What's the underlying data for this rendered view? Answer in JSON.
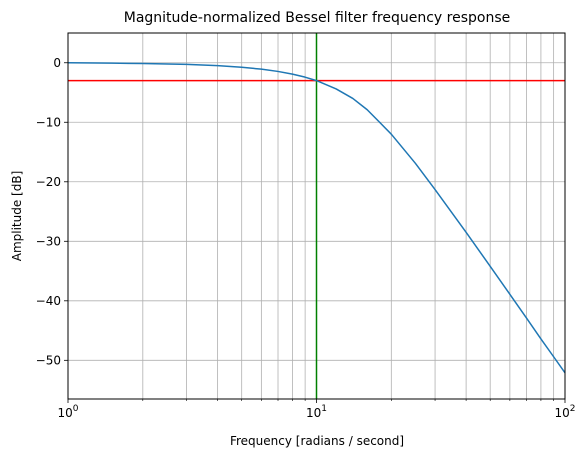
{
  "chart_data": {
    "type": "line",
    "title": "Magnitude-normalized Bessel filter frequency response",
    "xlabel": "Frequency [radians / second]",
    "ylabel": "Amplitude [dB]",
    "xscale": "log",
    "xlim": [
      1,
      100
    ],
    "ylim": [
      -56.5,
      5
    ],
    "grid": true,
    "x_ticks": [
      {
        "value": 1,
        "base": "10",
        "exp": "0"
      },
      {
        "value": 10,
        "base": "10",
        "exp": "1"
      },
      {
        "value": 100,
        "base": "10",
        "exp": "2"
      }
    ],
    "y_ticks": [
      0,
      -10,
      -20,
      -30,
      -40,
      -50
    ],
    "y_tick_labels": [
      "0",
      "−10",
      "−20",
      "−30",
      "−40",
      "−50"
    ],
    "series": [
      {
        "color": "#1f77b4",
        "x": [
          1,
          1.5,
          2,
          3,
          4,
          5,
          6,
          7,
          8,
          9,
          10,
          12,
          14,
          16,
          20,
          25,
          30,
          40,
          50,
          60,
          70,
          80,
          90,
          100
        ],
        "y": [
          0,
          -0.07,
          -0.12,
          -0.27,
          -0.48,
          -0.75,
          -1.08,
          -1.46,
          -1.91,
          -2.42,
          -3.0,
          -4.4,
          -6.0,
          -7.9,
          -12.0,
          -16.9,
          -21.3,
          -28.5,
          -34.2,
          -38.9,
          -42.9,
          -46.4,
          -49.4,
          -52.1
        ]
      }
    ],
    "reference_lines": [
      {
        "orientation": "horizontal",
        "value": -3,
        "color": "#ff0000"
      },
      {
        "orientation": "vertical",
        "value": 10,
        "color": "#008000"
      }
    ]
  }
}
